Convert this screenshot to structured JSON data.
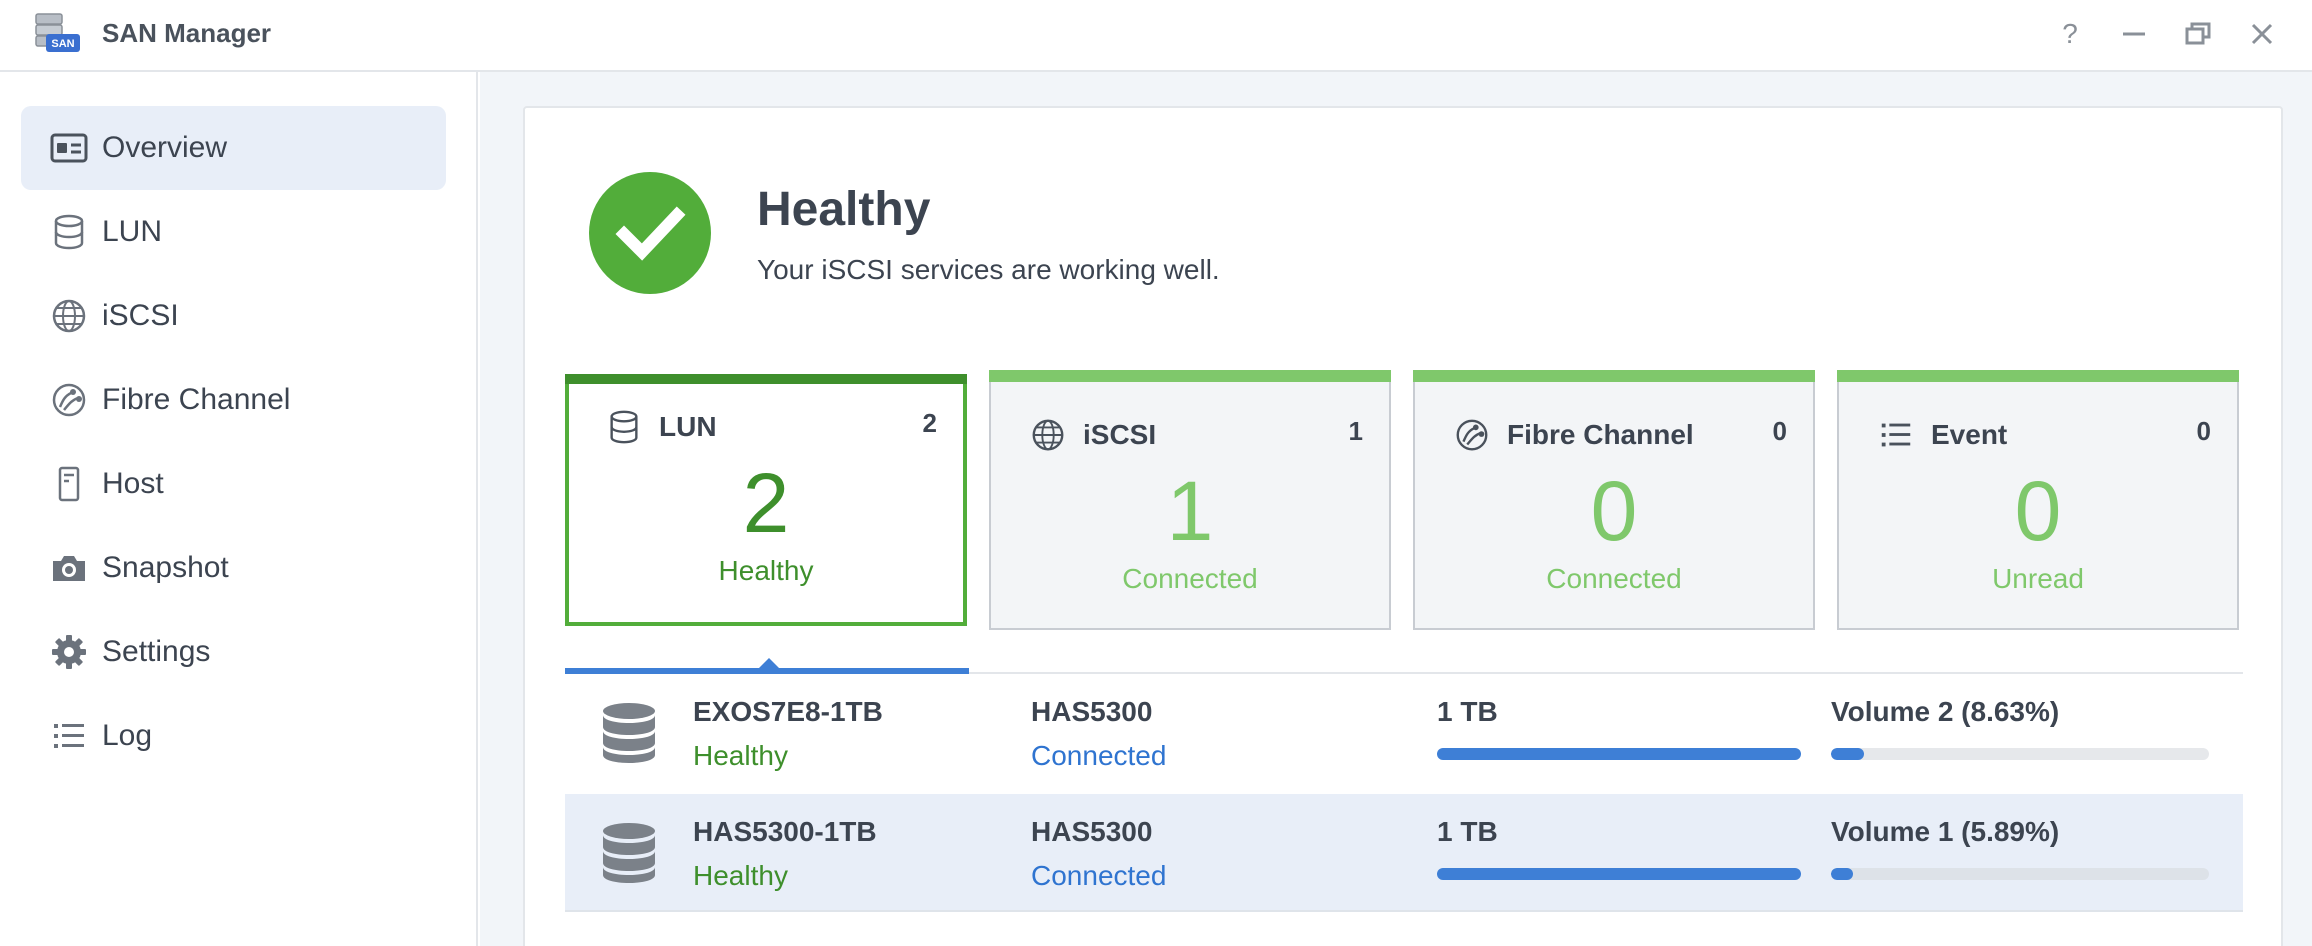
{
  "window": {
    "title": "SAN Manager",
    "app_icon_text": "SAN",
    "controls": {
      "help": "?",
      "minimize": "—",
      "restore": "🗗",
      "close": "✕"
    }
  },
  "sidebar": {
    "items": [
      {
        "label": "Overview",
        "icon": "overview-icon",
        "active": true
      },
      {
        "label": "LUN",
        "icon": "database-icon",
        "active": false
      },
      {
        "label": "iSCSI",
        "icon": "globe-icon",
        "active": false
      },
      {
        "label": "Fibre Channel",
        "icon": "fibre-channel-icon",
        "active": false
      },
      {
        "label": "Host",
        "icon": "host-icon",
        "active": false
      },
      {
        "label": "Snapshot",
        "icon": "camera-icon",
        "active": false
      },
      {
        "label": "Settings",
        "icon": "gear-icon",
        "active": false
      },
      {
        "label": "Log",
        "icon": "list-icon",
        "active": false
      }
    ]
  },
  "health": {
    "title": "Healthy",
    "description": "Your iSCSI services are working well.",
    "status_color": "#52ad3a"
  },
  "cards": [
    {
      "title": "LUN",
      "count": "2",
      "value": "2",
      "sub": "Healthy",
      "icon": "database-icon",
      "active": true
    },
    {
      "title": "iSCSI",
      "count": "1",
      "value": "1",
      "sub": "Connected",
      "icon": "globe-icon",
      "active": false
    },
    {
      "title": "Fibre Channel",
      "count": "0",
      "value": "0",
      "sub": "Connected",
      "icon": "fibre-channel-icon",
      "active": false
    },
    {
      "title": "Event",
      "count": "0",
      "value": "0",
      "sub": "Unread",
      "icon": "list-icon",
      "active": false
    }
  ],
  "lun_rows": [
    {
      "name": "EXOS7E8-1TB",
      "status": "Healthy",
      "host": "HAS5300",
      "connection": "Connected",
      "size": "1 TB",
      "size_fill_fraction": 1.0,
      "volume": "Volume 2 (8.63%)",
      "volume_usage_fraction": 0.0863,
      "selected": false
    },
    {
      "name": "HAS5300-1TB",
      "status": "Healthy",
      "host": "HAS5300",
      "connection": "Connected",
      "size": "1 TB",
      "size_fill_fraction": 1.0,
      "volume": "Volume 1 (5.89%)",
      "volume_usage_fraction": 0.0589,
      "selected": true
    }
  ],
  "colors": {
    "healthy_green": "#52ad3a",
    "dark_green": "#3e8f2c",
    "light_green": "#7fc86b",
    "accent_blue": "#3e7fd6",
    "link_blue": "#2f74d0"
  }
}
